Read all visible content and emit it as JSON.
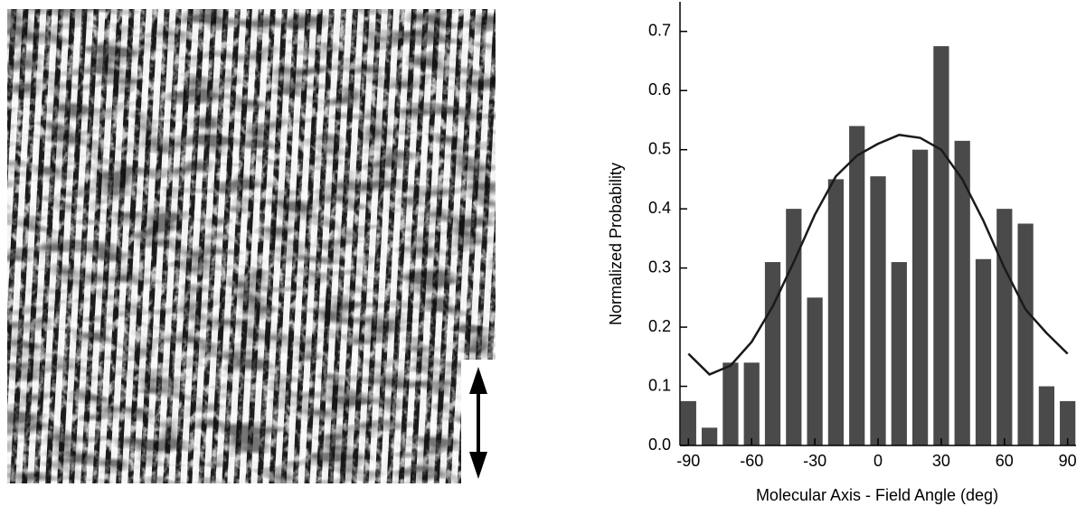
{
  "chart_data": {
    "type": "bar",
    "x_label": "Molecular Axis - Field Angle (deg)",
    "y_label": "Normalized Probability",
    "x": [
      -90,
      -80,
      -70,
      -60,
      -50,
      -40,
      -30,
      -20,
      -10,
      0,
      10,
      20,
      30,
      40,
      50,
      60,
      70,
      80,
      90
    ],
    "series": [
      {
        "type": "bar",
        "color": "#4a4a4a",
        "values": [
          0.075,
          0.03,
          0.14,
          0.14,
          0.31,
          0.4,
          0.25,
          0.45,
          0.54,
          0.455,
          0.31,
          0.5,
          0.675,
          0.515,
          0.315,
          0.4,
          0.375,
          0.1,
          0.075
        ]
      },
      {
        "type": "line",
        "color": "#1a1a1a",
        "values": [
          0.155,
          0.12,
          0.135,
          0.175,
          0.235,
          0.31,
          0.39,
          0.455,
          0.49,
          0.51,
          0.525,
          0.52,
          0.5,
          0.45,
          0.38,
          0.3,
          0.23,
          0.19,
          0.155
        ]
      }
    ],
    "xlim": [
      -94,
      94
    ],
    "ylim": [
      0,
      0.75
    ],
    "xticks": [
      -90,
      -60,
      -30,
      0,
      30,
      60,
      90
    ],
    "yticks": [
      {
        "value": 0,
        "label": "0.0"
      },
      0.1,
      0.2,
      0.3,
      0.4,
      0.5,
      0.6,
      0.7
    ]
  }
}
